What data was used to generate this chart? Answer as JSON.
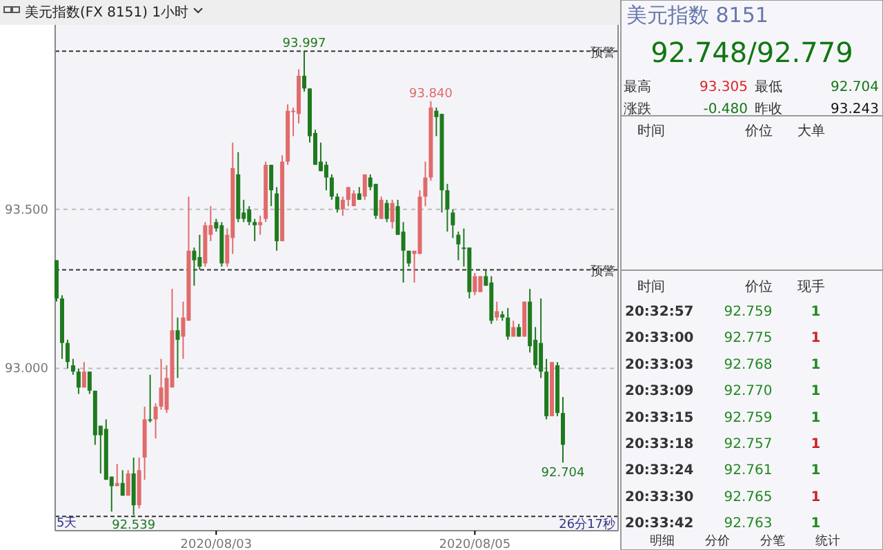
{
  "chart_data": {
    "type": "candlestick",
    "title": "美元指数(FX 8151)  1小时",
    "categories": [
      null,
      null,
      null,
      null,
      null,
      null,
      null,
      null,
      null,
      null,
      null,
      null,
      null,
      null,
      null,
      null,
      null,
      null,
      null,
      null,
      null,
      null,
      null,
      null,
      null,
      null,
      null,
      null,
      null,
      "2020/08/03",
      null,
      null,
      null,
      null,
      null,
      null,
      null,
      null,
      null,
      null,
      null,
      null,
      null,
      null,
      null,
      null,
      null,
      null,
      null,
      null,
      null,
      null,
      null,
      null,
      null,
      null,
      null,
      null,
      null,
      null,
      null,
      null,
      null,
      null,
      null,
      null,
      null,
      null,
      null,
      null,
      null,
      null,
      null,
      null,
      null,
      null,
      "2020/08/05",
      null,
      null,
      null,
      null,
      null,
      null,
      null,
      null,
      null,
      null,
      null,
      null,
      null,
      null,
      null,
      null
    ],
    "ohlc": [
      [
        93.34,
        93.34,
        93.21,
        93.22
      ],
      [
        93.22,
        93.23,
        93.03,
        93.08
      ],
      [
        93.08,
        93.09,
        93.0,
        93.02
      ],
      [
        93.01,
        93.03,
        92.98,
        92.99
      ],
      [
        92.99,
        93.0,
        92.92,
        92.94
      ],
      [
        92.94,
        93.02,
        92.94,
        92.99
      ],
      [
        92.99,
        92.99,
        92.92,
        92.93
      ],
      [
        92.93,
        92.93,
        92.76,
        92.79
      ],
      [
        92.82,
        92.82,
        92.67,
        92.79
      ],
      [
        92.81,
        92.84,
        92.65,
        92.65
      ],
      [
        92.66,
        92.66,
        92.55,
        92.63
      ],
      [
        92.63,
        92.7,
        92.63,
        92.64
      ],
      [
        92.64,
        92.68,
        92.6,
        92.6
      ],
      [
        92.6,
        92.68,
        92.6,
        92.67
      ],
      [
        92.67,
        92.72,
        92.539,
        92.57
      ],
      [
        92.57,
        92.72,
        92.56,
        92.68
      ],
      [
        92.72,
        92.88,
        92.65,
        92.84
      ],
      [
        92.84,
        92.98,
        92.83,
        92.84
      ],
      [
        92.84,
        92.89,
        92.78,
        92.88
      ],
      [
        92.88,
        93.03,
        92.87,
        92.94
      ],
      [
        92.87,
        93.01,
        92.86,
        92.97
      ],
      [
        92.94,
        93.25,
        92.94,
        93.12
      ],
      [
        93.12,
        93.16,
        92.97,
        93.09
      ],
      [
        93.1,
        93.21,
        93.03,
        93.16
      ],
      [
        93.15,
        93.54,
        93.15,
        93.37
      ],
      [
        93.37,
        93.38,
        93.26,
        93.34
      ],
      [
        93.35,
        93.42,
        93.31,
        93.32
      ],
      [
        93.33,
        93.46,
        93.32,
        93.45
      ],
      [
        93.42,
        93.51,
        93.4,
        93.45
      ],
      [
        93.46,
        93.47,
        93.43,
        93.44
      ],
      [
        93.45,
        93.46,
        93.32,
        93.33
      ],
      [
        93.33,
        93.44,
        93.32,
        93.42
      ],
      [
        93.41,
        93.71,
        93.36,
        93.63
      ],
      [
        93.61,
        93.68,
        93.46,
        93.47
      ],
      [
        93.49,
        93.53,
        93.46,
        93.47
      ],
      [
        93.5,
        93.51,
        93.45,
        93.46
      ],
      [
        93.46,
        93.47,
        93.4,
        93.45
      ],
      [
        93.45,
        93.48,
        93.42,
        93.46
      ],
      [
        93.47,
        93.65,
        93.46,
        93.64
      ],
      [
        93.64,
        93.64,
        93.51,
        93.56
      ],
      [
        93.55,
        93.57,
        93.37,
        93.4
      ],
      [
        93.4,
        93.67,
        93.4,
        93.65
      ],
      [
        93.65,
        93.83,
        93.64,
        93.81
      ],
      [
        93.81,
        93.82,
        93.73,
        93.81
      ],
      [
        93.8,
        93.94,
        93.77,
        93.92
      ],
      [
        93.92,
        93.997,
        93.87,
        93.88
      ],
      [
        93.88,
        93.88,
        93.71,
        93.73
      ],
      [
        93.74,
        93.75,
        93.64,
        93.64
      ],
      [
        93.65,
        93.71,
        93.62,
        93.62
      ],
      [
        93.64,
        93.65,
        93.56,
        93.6
      ],
      [
        93.6,
        93.61,
        93.53,
        93.54
      ],
      [
        93.54,
        93.55,
        93.49,
        93.5
      ],
      [
        93.5,
        93.54,
        93.48,
        93.53
      ],
      [
        93.53,
        93.57,
        93.51,
        93.57
      ],
      [
        93.51,
        93.56,
        93.51,
        93.55
      ],
      [
        93.55,
        93.57,
        93.53,
        93.53
      ],
      [
        93.54,
        93.61,
        93.53,
        93.61
      ],
      [
        93.6,
        93.61,
        93.56,
        93.57
      ],
      [
        93.58,
        93.58,
        93.47,
        93.48
      ],
      [
        93.47,
        93.54,
        93.47,
        93.53
      ],
      [
        93.52,
        93.53,
        93.46,
        93.47
      ],
      [
        93.46,
        93.53,
        93.44,
        93.52
      ],
      [
        93.51,
        93.53,
        93.42,
        93.42
      ],
      [
        93.43,
        93.46,
        93.27,
        93.37
      ],
      [
        93.37,
        93.37,
        93.32,
        93.33
      ],
      [
        93.36,
        93.37,
        93.27,
        93.37
      ],
      [
        93.36,
        93.56,
        93.36,
        93.54
      ],
      [
        93.54,
        93.65,
        93.51,
        93.6
      ],
      [
        93.6,
        93.84,
        93.59,
        93.82
      ],
      [
        93.81,
        93.82,
        93.73,
        93.79
      ],
      [
        93.8,
        93.8,
        93.49,
        93.56
      ],
      [
        93.56,
        93.58,
        93.43,
        93.5
      ],
      [
        93.49,
        93.5,
        93.41,
        93.45
      ],
      [
        93.42,
        93.43,
        93.34,
        93.39
      ],
      [
        93.38,
        93.44,
        93.32,
        93.38
      ],
      [
        93.38,
        93.38,
        93.22,
        93.24
      ],
      [
        93.24,
        93.3,
        93.23,
        93.29
      ],
      [
        93.24,
        93.29,
        93.24,
        93.29
      ],
      [
        93.29,
        93.31,
        93.26,
        93.26
      ],
      [
        93.27,
        93.29,
        93.14,
        93.15
      ],
      [
        93.16,
        93.21,
        93.15,
        93.18
      ],
      [
        93.17,
        93.18,
        93.15,
        93.16
      ],
      [
        93.16,
        93.19,
        93.09,
        93.1
      ],
      [
        93.1,
        93.15,
        93.1,
        93.13
      ],
      [
        93.13,
        93.14,
        93.1,
        93.1
      ],
      [
        93.1,
        93.21,
        93.1,
        93.21
      ],
      [
        93.21,
        93.25,
        93.05,
        93.07
      ],
      [
        93.09,
        93.13,
        93.0,
        93.01
      ],
      [
        93.08,
        93.22,
        92.97,
        92.99
      ],
      [
        92.99,
        93.03,
        92.84,
        92.85
      ],
      [
        92.85,
        93.02,
        92.85,
        93.02
      ],
      [
        93.01,
        93.02,
        92.85,
        92.86
      ],
      [
        92.86,
        92.91,
        92.704,
        92.76
      ]
    ],
    "colors": [
      "#1f7a1f",
      "#1f7a1f",
      "#1f7a1f",
      "#1f7a1f",
      "#1f7a1f",
      "#e06b6b",
      "#1f7a1f",
      "#1f7a1f",
      "#1f7a1f",
      "#1f7a1f",
      "#1f7a1f",
      "#e06b6b",
      "#1f7a1f",
      "#e06b6b",
      "#1f7a1f",
      "#e06b6b",
      "#e06b6b",
      "#1f7a1f",
      "#e06b6b",
      "#e06b6b",
      "#e06b6b",
      "#e06b6b",
      "#1f7a1f",
      "#e06b6b",
      "#e06b6b",
      "#1f7a1f",
      "#1f7a1f",
      "#e06b6b",
      "#e06b6b",
      "#1f7a1f",
      "#1f7a1f",
      "#e06b6b",
      "#e06b6b",
      "#1f7a1f",
      "#1f7a1f",
      "#1f7a1f",
      "#1f7a1f",
      "#e06b6b",
      "#e06b6b",
      "#1f7a1f",
      "#1f7a1f",
      "#e06b6b",
      "#e06b6b",
      "#e06b6b",
      "#e06b6b",
      "#1f7a1f",
      "#1f7a1f",
      "#1f7a1f",
      "#1f7a1f",
      "#1f7a1f",
      "#1f7a1f",
      "#1f7a1f",
      "#e06b6b",
      "#e06b6b",
      "#e06b6b",
      "#1f7a1f",
      "#e06b6b",
      "#1f7a1f",
      "#1f7a1f",
      "#e06b6b",
      "#1f7a1f",
      "#e06b6b",
      "#1f7a1f",
      "#1f7a1f",
      "#1f7a1f",
      "#e06b6b",
      "#e06b6b",
      "#e06b6b",
      "#e06b6b",
      "#1f7a1f",
      "#1f7a1f",
      "#1f7a1f",
      "#1f7a1f",
      "#1f7a1f",
      "#1f7a1f",
      "#1f7a1f",
      "#e06b6b",
      "#e06b6b",
      "#1f7a1f",
      "#1f7a1f",
      "#e06b6b",
      "#1f7a1f",
      "#1f7a1f",
      "#e06b6b",
      "#1f7a1f",
      "#e06b6b",
      "#1f7a1f",
      "#1f7a1f",
      "#1f7a1f",
      "#1f7a1f",
      "#e06b6b",
      "#1f7a1f",
      "#1f7a1f"
    ],
    "ylim": [
      92.49,
      94.08
    ],
    "yticks": [
      {
        "value": 93,
        "label": "93.000"
      },
      {
        "value": 93.5,
        "label": "93.500"
      }
    ],
    "grid": "y",
    "ref_lines": [
      {
        "axis": "y",
        "value": 93.997,
        "label": "预警",
        "color": "#333333",
        "line_style": "dashed"
      },
      {
        "axis": "y",
        "value": 93.31,
        "label": "预警",
        "color": "#333333",
        "line_style": "dashed"
      },
      {
        "axis": "y",
        "value": 92.535,
        "color": "#333333",
        "line_style": "dashed"
      }
    ],
    "annotations": [
      {
        "text": "93.997",
        "y": 93.997
      },
      {
        "text": "93.840",
        "y": 93.84
      },
      {
        "text": "92.539",
        "y": 92.539
      },
      {
        "text": "92.704",
        "y": 92.704
      },
      "5天",
      "26分17秒",
      "美元指数  8151",
      "92.748/92.779",
      "最高",
      "93.305",
      "最低",
      "92.704",
      "涨跌",
      "-0.480",
      "昨收",
      "93.243",
      "时间",
      "价位",
      "大单",
      "时间",
      "价位",
      "现手",
      "20:32:57",
      "92.759",
      "1",
      "20:33:00",
      "92.775",
      "1",
      "20:33:03",
      "92.768",
      "1",
      "20:33:09",
      "92.770",
      "1",
      "20:33:15",
      "92.759",
      "1",
      "20:33:18",
      "92.757",
      "1",
      "20:33:24",
      "92.761",
      "1",
      "20:33:30",
      "92.765",
      "1",
      "20:33:42",
      "92.763",
      "1",
      "明细",
      "分价",
      "分笔",
      "统计"
    ]
  }
}
